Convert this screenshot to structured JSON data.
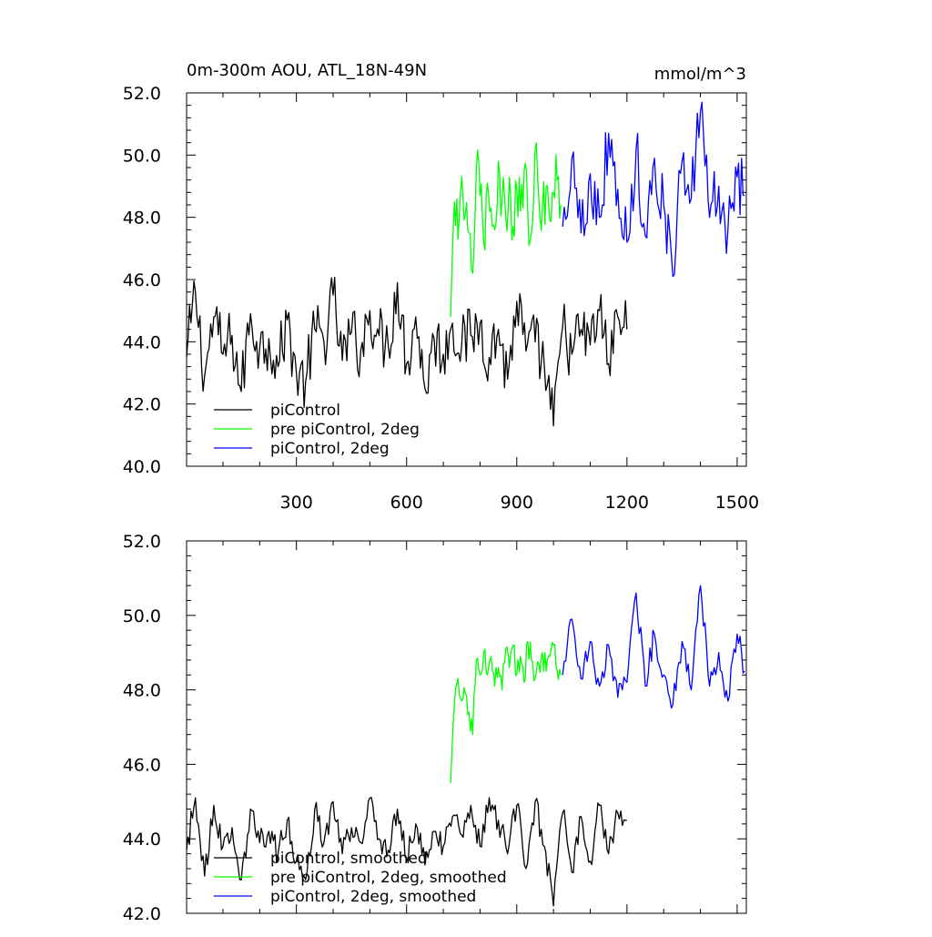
{
  "chart_data": [
    {
      "type": "line",
      "title": "0m-300m AOU, ATL_18N-49N",
      "units": "mmol/m^3",
      "xlabel": "",
      "ylabel": "",
      "xlim": [
        1,
        1525
      ],
      "ylim": [
        40,
        52
      ],
      "xticks": [
        300,
        600,
        900,
        1200,
        1500
      ],
      "yticks": [
        "40.0",
        "42.0",
        "44.0",
        "46.0",
        "48.0",
        "50.0",
        "52.0"
      ],
      "grid": false,
      "legend_position": "bottom-left",
      "series": [
        {
          "name": "piControl",
          "color": "#000000",
          "x": [
            1,
            25,
            50,
            75,
            100,
            125,
            150,
            175,
            200,
            225,
            250,
            275,
            300,
            325,
            350,
            375,
            400,
            425,
            450,
            475,
            500,
            525,
            550,
            575,
            600,
            625,
            650,
            675,
            700,
            725,
            750,
            775,
            800,
            825,
            850,
            875,
            900,
            925,
            950,
            975,
            1000,
            1025,
            1050,
            1075,
            1100,
            1125,
            1150,
            1175,
            1200
          ],
          "values": [
            43.5,
            45.6,
            42.9,
            44.8,
            43.6,
            44.2,
            42.4,
            44.9,
            43.8,
            44.1,
            43.2,
            44.7,
            43.0,
            42.7,
            44.4,
            44.0,
            45.5,
            43.4,
            44.3,
            43.7,
            45.0,
            44.2,
            43.9,
            45.9,
            43.3,
            44.8,
            42.5,
            44.1,
            43.6,
            44.6,
            43.9,
            44.2,
            44.6,
            43.5,
            44.4,
            42.8,
            45.3,
            43.7,
            44.0,
            43.2,
            41.3,
            44.5,
            43.6,
            44.4,
            43.9,
            45.0,
            43.3,
            44.8,
            44.4
          ]
        },
        {
          "name": "pre piControl, 2deg",
          "color": "#00ff00",
          "x": [
            720,
            730,
            740,
            750,
            760,
            770,
            780,
            790,
            800,
            810,
            820,
            830,
            840,
            850,
            860,
            870,
            880,
            890,
            900,
            910,
            920,
            930,
            940,
            950,
            960,
            970,
            980,
            990,
            1000,
            1010,
            1020
          ],
          "values": [
            44.8,
            48.5,
            47.3,
            49.3,
            48.1,
            47.5,
            46.2,
            49.6,
            48.7,
            47.2,
            49.1,
            48.3,
            47.6,
            49.8,
            48.5,
            48.0,
            49.3,
            47.7,
            48.9,
            48.2,
            49.5,
            48.1,
            47.5,
            50.2,
            48.6,
            48.3,
            49.0,
            47.9,
            48.8,
            49.2,
            48.4
          ]
        },
        {
          "name": "piControl, 2deg",
          "color": "#0000ff",
          "x": [
            1025,
            1050,
            1075,
            1100,
            1125,
            1150,
            1175,
            1200,
            1225,
            1250,
            1275,
            1300,
            1325,
            1350,
            1375,
            1400,
            1425,
            1450,
            1475,
            1500,
            1520
          ],
          "values": [
            47.7,
            49.9,
            47.5,
            49.4,
            48.0,
            50.7,
            48.9,
            47.2,
            50.2,
            47.4,
            49.9,
            48.4,
            46.1,
            49.8,
            48.6,
            51.4,
            48.0,
            49.0,
            47.6,
            49.3,
            48.7
          ]
        }
      ]
    },
    {
      "type": "line",
      "title": "",
      "xlabel": "",
      "ylabel": "",
      "xlim": [
        1,
        1525
      ],
      "ylim": [
        42,
        52
      ],
      "xticks": [
        300,
        600,
        900,
        1200,
        1500
      ],
      "yticks": [
        "42.0",
        "44.0",
        "46.0",
        "48.0",
        "50.0",
        "52.0"
      ],
      "grid": false,
      "legend_position": "bottom-left",
      "series": [
        {
          "name": "piControl, smoothed",
          "color": "#000000",
          "x": [
            1,
            25,
            50,
            75,
            100,
            125,
            150,
            175,
            200,
            225,
            250,
            275,
            300,
            325,
            350,
            375,
            400,
            425,
            450,
            475,
            500,
            525,
            550,
            575,
            600,
            625,
            650,
            675,
            700,
            725,
            750,
            775,
            800,
            825,
            850,
            875,
            900,
            925,
            950,
            975,
            1000,
            1025,
            1050,
            1075,
            1100,
            1125,
            1150,
            1175,
            1200
          ],
          "values": [
            43.7,
            45.1,
            43.0,
            44.9,
            43.8,
            44.3,
            42.9,
            44.8,
            43.9,
            44.2,
            43.6,
            44.5,
            43.4,
            42.9,
            44.8,
            43.9,
            45.0,
            43.6,
            44.3,
            43.9,
            45.1,
            44.0,
            43.7,
            44.8,
            43.5,
            44.4,
            43.3,
            44.2,
            43.8,
            44.6,
            44.1,
            44.9,
            43.8,
            45.1,
            44.5,
            43.6,
            44.9,
            43.2,
            45.0,
            43.8,
            42.2,
            44.7,
            43.1,
            44.6,
            43.4,
            44.9,
            43.6,
            44.7,
            44.5
          ]
        },
        {
          "name": "pre piControl, 2deg, smoothed",
          "color": "#00ff00",
          "x": [
            720,
            730,
            740,
            750,
            760,
            770,
            780,
            790,
            800,
            810,
            820,
            830,
            840,
            850,
            860,
            870,
            880,
            890,
            900,
            910,
            920,
            930,
            940,
            950,
            960,
            970,
            980,
            990,
            1000,
            1010,
            1020
          ],
          "values": [
            45.5,
            47.6,
            48.3,
            47.7,
            47.9,
            47.4,
            46.8,
            48.8,
            48.4,
            49.0,
            48.4,
            48.9,
            48.1,
            48.6,
            48.0,
            49.1,
            48.6,
            49.2,
            48.4,
            48.9,
            48.2,
            49.3,
            48.8,
            48.3,
            48.7,
            49.0,
            48.5,
            48.9,
            49.2,
            48.5,
            48.4
          ]
        },
        {
          "name": "piControl, 2deg, smoothed",
          "color": "#0000ff",
          "x": [
            1025,
            1050,
            1075,
            1100,
            1125,
            1150,
            1175,
            1200,
            1225,
            1250,
            1275,
            1300,
            1325,
            1350,
            1375,
            1400,
            1425,
            1450,
            1475,
            1500,
            1520
          ],
          "values": [
            48.4,
            49.9,
            48.3,
            49.3,
            48.1,
            49.2,
            47.8,
            48.2,
            50.6,
            48.1,
            49.5,
            48.4,
            47.6,
            49.3,
            48.0,
            50.8,
            48.1,
            49.0,
            47.7,
            49.5,
            48.5
          ]
        }
      ]
    }
  ]
}
